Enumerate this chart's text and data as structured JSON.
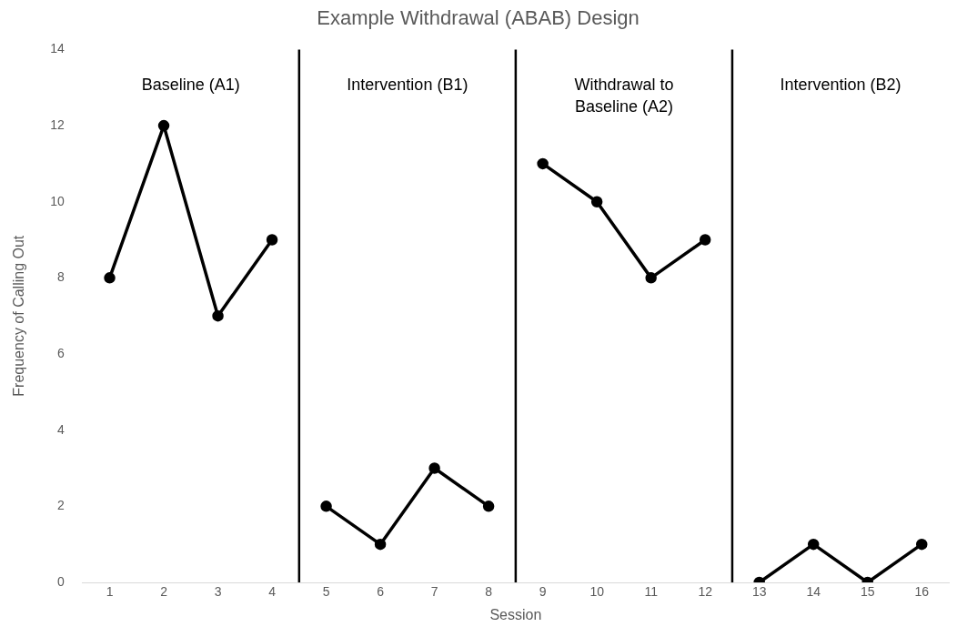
{
  "chart_data": {
    "type": "line",
    "title": "Example Withdrawal (ABAB) Design",
    "xlabel": "Session",
    "ylabel": "Frequency of Calling Out",
    "xlim": [
      0.5,
      16.5
    ],
    "xticks": [
      1,
      2,
      3,
      4,
      5,
      6,
      7,
      8,
      9,
      10,
      11,
      12,
      13,
      14,
      15,
      16
    ],
    "ylim": [
      0,
      14
    ],
    "yticks": [
      0,
      2,
      4,
      6,
      8,
      10,
      12,
      14
    ],
    "grid": false,
    "legend": false,
    "marker": "circle",
    "line_style": "solid",
    "series": [
      {
        "color": "#000000",
        "x": [
          1,
          2,
          3,
          4
        ],
        "values": [
          8,
          12,
          7,
          9
        ]
      },
      {
        "color": "#000000",
        "x": [
          5,
          6,
          7,
          8
        ],
        "values": [
          2,
          1,
          3,
          2
        ]
      },
      {
        "color": "#000000",
        "x": [
          9,
          10,
          11,
          12
        ],
        "values": [
          11,
          10,
          8,
          9
        ]
      },
      {
        "color": "#000000",
        "x": [
          13,
          14,
          15,
          16
        ],
        "values": [
          0,
          1,
          0,
          1
        ]
      }
    ],
    "ref_lines": [
      {
        "axis": "x",
        "value": 4.5,
        "color": "#000000"
      },
      {
        "axis": "x",
        "value": 8.5,
        "color": "#000000"
      },
      {
        "axis": "x",
        "value": 12.5,
        "color": "#000000"
      }
    ],
    "annotations": [
      "Baseline (A1)",
      "Intervention (B1)",
      "Withdrawal to Baseline (A2)",
      "Intervention (B2)"
    ]
  }
}
